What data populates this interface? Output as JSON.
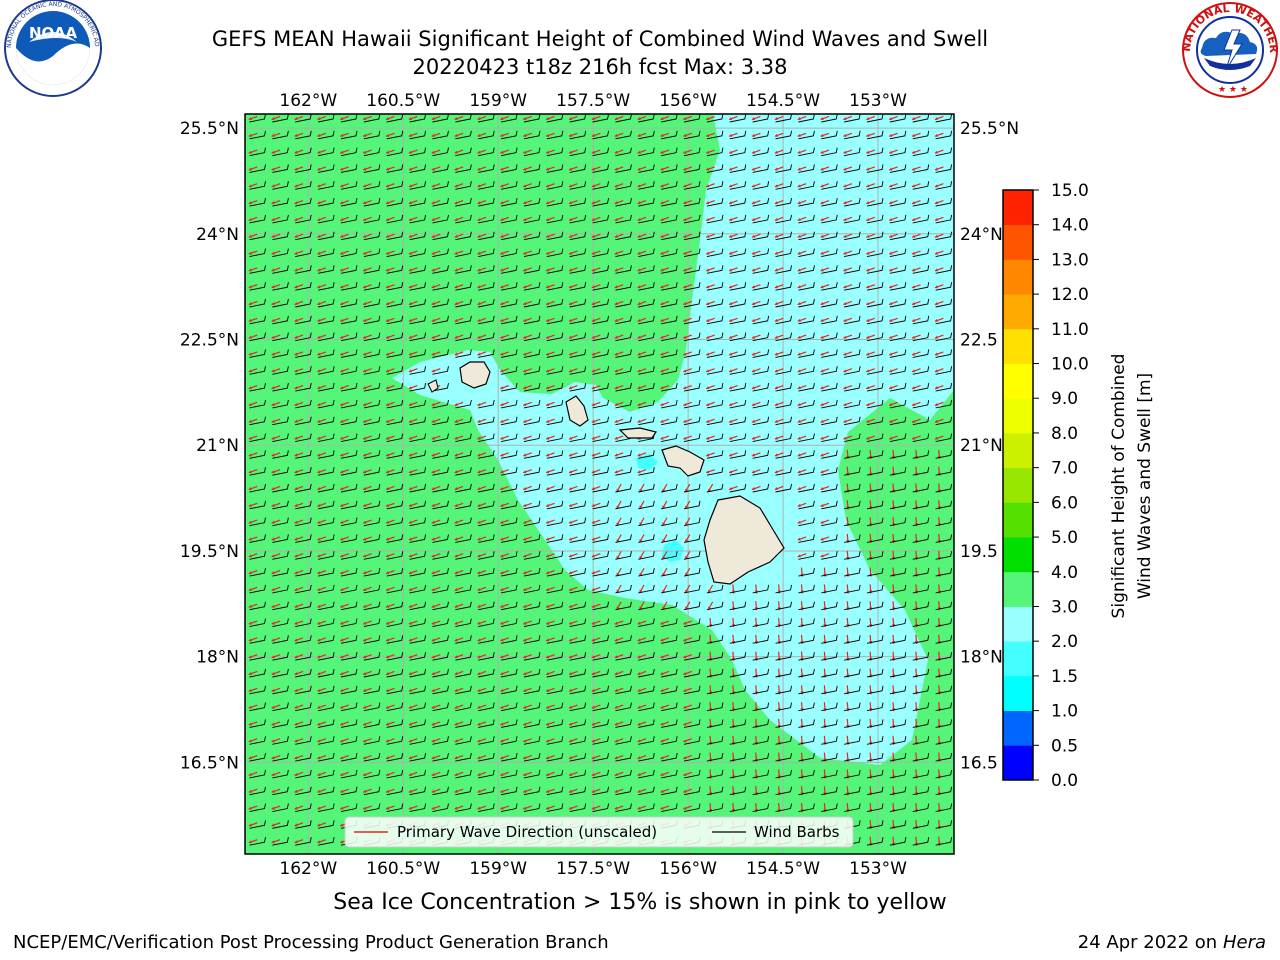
{
  "header": {
    "title_line1": "GEFS MEAN Hawaii Significant Height of Combined Wind Waves and Swell",
    "title_line2": "20220423 t18z 216h fcst   Max: 3.38"
  },
  "logos": {
    "left": {
      "name": "noaa-logo",
      "text": "NOAA",
      "ring_text": "NATIONAL OCEANIC AND ATMOSPHERIC ADMINISTRATION · U.S. DEPARTMENT OF COMMERCE"
    },
    "right": {
      "name": "nws-logo",
      "ring_text": "NATIONAL WEATHER SERVICE"
    }
  },
  "map": {
    "lon_range": [
      -163.0,
      -151.8
    ],
    "lat_range": [
      15.2,
      25.7
    ],
    "lon_ticks": [
      "162°W",
      "160.5°W",
      "159°W",
      "157.5°W",
      "156°W",
      "154.5°W",
      "153°W"
    ],
    "lon_values": [
      -162,
      -160.5,
      -159,
      -157.5,
      -156,
      -154.5,
      -153
    ],
    "lat_ticks": [
      "25.5°N",
      "24°N",
      "22.5°N",
      "21°N",
      "19.5°N",
      "18°N",
      "16.5°N"
    ],
    "lat_values": [
      25.5,
      24,
      22.5,
      21,
      19.5,
      18,
      16.5
    ],
    "lat_ticks_right": [
      "25.5°N",
      "24°N",
      "22.5",
      "21°N",
      "19.5",
      "18°N",
      "16.5"
    ],
    "land_color": "#efe9da",
    "grid_color": "#b0b0b0",
    "islands": [
      "Kauai",
      "Oahu",
      "Molokai",
      "Maui",
      "Hawaii"
    ]
  },
  "legend": {
    "wave_label": "Primary Wave Direction (unscaled)",
    "wave_color": "#e8261c",
    "barb_label": "Wind Barbs",
    "barb_color": "#000000"
  },
  "colorbar": {
    "label_line1": "Significant Height of Combined",
    "label_line2": "Wind Waves and Swell [m]",
    "ticks": [
      "15.0",
      "14.0",
      "13.0",
      "12.0",
      "11.0",
      "10.0",
      "9.0",
      "8.0",
      "7.0",
      "6.0",
      "5.0",
      "4.0",
      "3.0",
      "2.0",
      "1.5",
      "1.0",
      "0.5",
      "0.0"
    ],
    "colors_bottom_to_top": [
      "#0000ff",
      "#0066ff",
      "#00ffff",
      "#44ffff",
      "#99ffff",
      "#55f57a",
      "#00e000",
      "#55e000",
      "#99e600",
      "#ccf000",
      "#eeff00",
      "#ffff00",
      "#ffe000",
      "#ffaa00",
      "#ff8800",
      "#ff5500",
      "#ff2200"
    ]
  },
  "field": {
    "max_value_m": 3.38,
    "dominant_band_m": [
      2.0,
      3.0
    ],
    "outer_band_m": [
      3.0,
      4.0
    ],
    "colors": {
      "band_2_3": "#99ffff",
      "band_3_4": "#55f57a",
      "band_15_2": "#44ffff"
    }
  },
  "footer": {
    "note": "Sea Ice Concentration > 15% is shown in pink to yellow",
    "left": "NCEP/EMC/Verification Post Processing Product Generation Branch",
    "right_prefix": "24 Apr 2022 on ",
    "right_host": "Hera"
  }
}
